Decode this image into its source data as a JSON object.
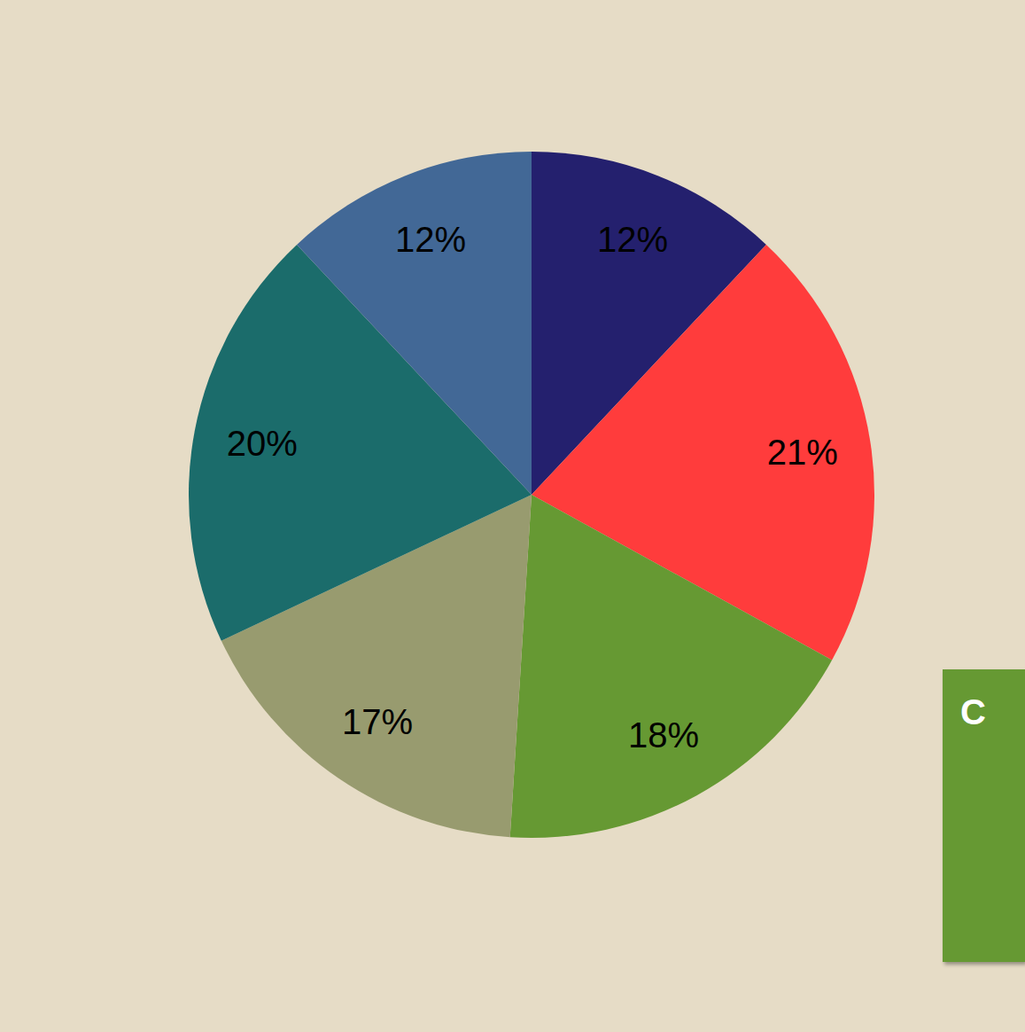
{
  "chart_data": {
    "type": "pie",
    "values": [
      12,
      21,
      18,
      17,
      20,
      12
    ],
    "value_labels": [
      "12%",
      "21%",
      "18%",
      "17%",
      "20%",
      "12%"
    ],
    "colors": [
      "#24206e",
      "#ff3c3c",
      "#669933",
      "#989b6f",
      "#1b6c6b",
      "#426896"
    ],
    "data_labels": true,
    "annotations": [
      "C"
    ]
  }
}
